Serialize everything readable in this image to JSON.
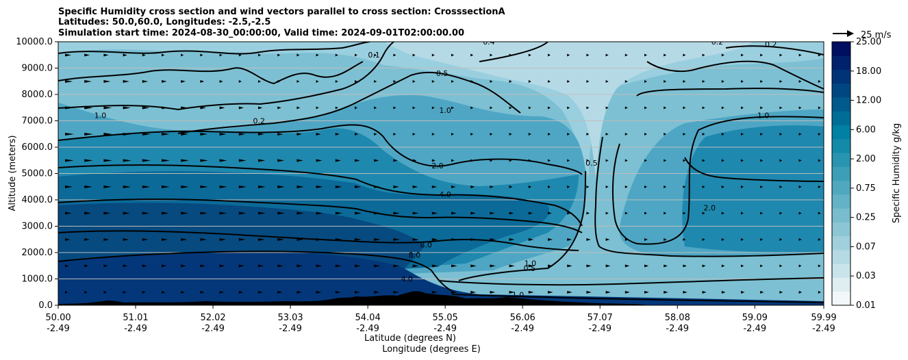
{
  "chart_data": {
    "type": "contour",
    "title_lines": [
      "Specific Humidity cross section and wind vectors parallel to cross section: CrosssectionA",
      "Latitudes: 50.0,60.0, Longitudes: -2.5,-2.5",
      "Simulation start time: 2024-08-30_00:00:00, Valid time: 2024-09-01T02:00:00.00"
    ],
    "xlabel_lines": [
      "Latitude (degrees N)",
      "Longitude (degrees E)"
    ],
    "ylabel": "Altitude (meters)",
    "x_ticks_lat": [
      "50.00",
      "51.01",
      "52.02",
      "53.03",
      "54.04",
      "55.05",
      "56.06",
      "57.07",
      "58.08",
      "59.09",
      "59.99"
    ],
    "x_ticks_lon": [
      "-2.49",
      "-2.49",
      "-2.49",
      "-2.49",
      "-2.49",
      "-2.49",
      "-2.49",
      "-2.49",
      "-2.49",
      "-2.49",
      "-2.49"
    ],
    "x_range_lat": [
      50.0,
      59.99
    ],
    "y_ticks": [
      "0.0",
      "1000.0",
      "2000.0",
      "3000.0",
      "4000.0",
      "5000.0",
      "6000.0",
      "7000.0",
      "8000.0",
      "9000.0",
      "10000.0"
    ],
    "ylim": [
      0,
      10000
    ],
    "grid": "horizontal",
    "colorbar": {
      "label": "Specific Humidity g/kg",
      "tick_labels": [
        "0.01",
        "0.03",
        "0.07",
        "0.25",
        "0.75",
        "2.00",
        "6.00",
        "12.00",
        "18.00",
        "25.00"
      ],
      "colors": [
        "#f2f8f9",
        "#deeef1",
        "#c9e4ea",
        "#b5dae3",
        "#a1d0dc",
        "#8cc6d4",
        "#78bccd",
        "#64b2c6",
        "#50a8bf",
        "#3c9eb7",
        "#2894b0",
        "#148aa9",
        "#0080a2",
        "#006d97",
        "#005a8c",
        "#004781",
        "#003476",
        "#00216b",
        "#000e60"
      ]
    },
    "wind_key": {
      "label": "25 m/s",
      "speed": 25
    },
    "contour_labels": [
      {
        "text": "1.0",
        "lat": 50.55,
        "alt": 7100
      },
      {
        "text": "0.2",
        "lat": 52.62,
        "alt": 6900
      },
      {
        "text": "0.1",
        "lat": 54.12,
        "alt": 9400
      },
      {
        "text": "0.5",
        "lat": 55.01,
        "alt": 8700
      },
      {
        "text": "1.0",
        "lat": 55.05,
        "alt": 7300
      },
      {
        "text": "2.0",
        "lat": 54.95,
        "alt": 5200
      },
      {
        "text": "4.0",
        "lat": 55.05,
        "alt": 4100
      },
      {
        "text": "8.0",
        "lat": 54.8,
        "alt": 2200
      },
      {
        "text": "8.0",
        "lat": 54.65,
        "alt": 1800
      },
      {
        "text": "4.0",
        "lat": 54.55,
        "alt": 900
      },
      {
        "text": "0.5",
        "lat": 56.96,
        "alt": 5300
      },
      {
        "text": "1.0",
        "lat": 56.16,
        "alt": 1500
      },
      {
        "text": "0.5",
        "lat": 56.15,
        "alt": 1300
      },
      {
        "text": "2.0",
        "lat": 58.5,
        "alt": 3600
      },
      {
        "text": "1.0",
        "lat": 59.2,
        "alt": 7100
      },
      {
        "text": "0.2",
        "lat": 58.6,
        "alt": 9900
      },
      {
        "text": "0.2",
        "lat": 59.3,
        "alt": 9800
      },
      {
        "text": "0.4",
        "lat": 55.62,
        "alt": 9900
      },
      {
        "text": "1.0",
        "lat": 56.0,
        "alt": 300
      }
    ]
  }
}
